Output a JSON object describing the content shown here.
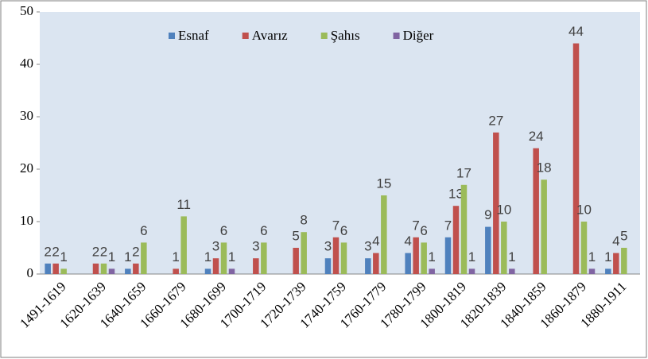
{
  "chart_data": {
    "type": "bar",
    "categories": [
      "1491-1619",
      "1620-1639",
      "1640-1659",
      "1660-1679",
      "1680-1699",
      "1700-1719",
      "1720-1739",
      "1740-1759",
      "1760-1779",
      "1780-1799",
      "1800-1819",
      "1820-1839",
      "1840-1859",
      "1860-1879",
      "1880-1911"
    ],
    "series": [
      {
        "name": "Esnaf",
        "color": "#4f81bd",
        "values": [
          2,
          null,
          1,
          null,
          1,
          null,
          null,
          3,
          3,
          4,
          7,
          9,
          null,
          null,
          1
        ]
      },
      {
        "name": "Avarız",
        "color": "#c0504d",
        "values": [
          2,
          2,
          2,
          1,
          3,
          3,
          5,
          7,
          4,
          7,
          13,
          27,
          24,
          44,
          4
        ]
      },
      {
        "name": "Şahıs",
        "color": "#9bbb59",
        "values": [
          1,
          2,
          6,
          11,
          6,
          6,
          8,
          6,
          15,
          6,
          17,
          10,
          18,
          10,
          5
        ]
      },
      {
        "name": "Diğer",
        "color": "#8064a2",
        "values": [
          null,
          1,
          null,
          null,
          1,
          null,
          null,
          null,
          null,
          1,
          1,
          1,
          null,
          1,
          null
        ]
      }
    ],
    "ylim": [
      0,
      50
    ],
    "yticks": [
      0,
      10,
      20,
      30,
      40,
      50
    ],
    "grid": false,
    "legend": "top"
  }
}
